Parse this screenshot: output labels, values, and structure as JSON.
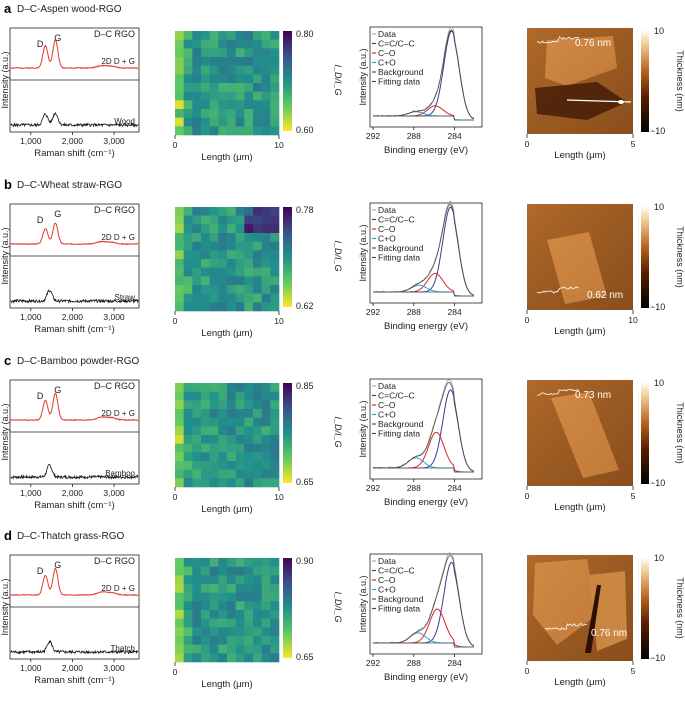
{
  "figure": {
    "panels": [
      {
        "letter": "a",
        "title": "D–C-Aspen wood-RGO",
        "sample": "Wood",
        "thickness_label": "0.76 nm",
        "afm_xmax": "5",
        "map": {
          "cbar_max": "0.80",
          "cbar_min": "0.60",
          "xmax": "10",
          "vmin": 0.6,
          "vmax": 0.8,
          "seed": 3,
          "hot_top_right": false
        }
      },
      {
        "letter": "b",
        "title": "D–C-Wheat straw-RGO",
        "sample": "Straw",
        "thickness_label": "0.62 nm",
        "afm_xmax": "10",
        "map": {
          "cbar_max": "0.78",
          "cbar_min": "0.62",
          "xmax": "10",
          "vmin": 0.62,
          "vmax": 0.78,
          "seed": 7,
          "hot_top_right": true
        }
      },
      {
        "letter": "c",
        "title": "D–C-Bamboo powder-RGO",
        "sample": "Bamboo",
        "thickness_label": "0.73 nm",
        "afm_xmax": "5",
        "map": {
          "cbar_max": "0.85",
          "cbar_min": "0.65",
          "xmax": "10",
          "vmin": 0.65,
          "vmax": 0.85,
          "seed": 11,
          "hot_top_right": false
        }
      },
      {
        "letter": "d",
        "title": "D–C-Thatch grass-RGO",
        "sample": "Thatch",
        "thickness_label": "0.76 nm",
        "afm_xmax": "5",
        "map": {
          "cbar_max": "0.90",
          "cbar_min": "0.65",
          "xmax": "",
          "vmin": 0.65,
          "vmax": 0.9,
          "seed": 19,
          "hot_top_right": false
        }
      }
    ],
    "raman": {
      "ylabel": "Intensity (a.u.)",
      "xlabel": "Raman shift (cm⁻¹)",
      "ticks": [
        "1,000",
        "2,000",
        "3,000"
      ],
      "rgo_label": "D–C RGO",
      "d_label": "D",
      "g_label": "G",
      "band2d_label": "2D D + G"
    },
    "map_common": {
      "xlabel": "Length (μm)",
      "xmin": "0",
      "ylabel": "I_D/I_G"
    },
    "xps": {
      "ylabel": "Intensity (a.u.)",
      "xlabel": "Binding energy (eV)",
      "ticks": [
        "292",
        "288",
        "284"
      ],
      "legend": [
        "Data",
        "C=C/C–C",
        "C–O",
        "C+O",
        "Background",
        "Fitting data"
      ]
    },
    "afm": {
      "xlabel": "Length (μm)",
      "xmin": "0",
      "cbar_label": "Thickness (nm)",
      "cbar_max": "10",
      "cbar_min": "−10"
    },
    "colors": {
      "raman_rgo": "#e23a2e",
      "raman_wood": "#111111",
      "xps_cc": "#3a3a8c",
      "xps_co": "#d62728",
      "xps_cpo": "#1fa7c9",
      "xps_bg": "#555555"
    }
  },
  "chart_data": [
    {
      "type": "line",
      "panel": "a-raman",
      "title": "D–C-Aspen wood-RGO",
      "xlabel": "Raman shift (cm⁻¹)",
      "ylabel": "Intensity (a.u.)",
      "xlim": [
        500,
        3600
      ],
      "series": [
        {
          "name": "D–C RGO",
          "peaks": [
            [
              1350,
              0.8
            ],
            [
              1590,
              1.0
            ],
            [
              2700,
              0.08
            ],
            [
              2940,
              0.06
            ]
          ]
        },
        {
          "name": "Wood",
          "peaks": [
            [
              1350,
              0.45
            ],
            [
              1590,
              0.5
            ]
          ]
        }
      ]
    },
    {
      "type": "heatmap",
      "panel": "a-map",
      "ylabel": "I_D/I_G",
      "xlabel": "Length (μm)",
      "xlim": [
        0,
        10
      ],
      "zlim": [
        0.6,
        0.8
      ]
    },
    {
      "type": "line",
      "panel": "a-xps",
      "xlabel": "Binding energy (eV)",
      "xlim": [
        292,
        282
      ],
      "components": [
        {
          "name": "C=C/C–C",
          "center": 284.3,
          "height": 1.0
        },
        {
          "name": "C–O",
          "center": 285.9,
          "height": 0.12
        },
        {
          "name": "C+O",
          "center": 287.8,
          "height": 0.05
        }
      ]
    },
    {
      "type": "heatmap",
      "panel": "a-afm",
      "xlabel": "Length (μm)",
      "xlim": [
        0,
        5
      ],
      "zlim": [
        -10,
        10
      ],
      "annotation": "0.76 nm"
    },
    {
      "type": "line",
      "panel": "b-raman",
      "title": "D–C-Wheat straw-RGO",
      "xlim": [
        500,
        3600
      ],
      "series": [
        {
          "name": "D–C RGO",
          "peaks": [
            [
              1350,
              0.55
            ],
            [
              1590,
              0.75
            ],
            [
              2700,
              0.08
            ],
            [
              2940,
              0.06
            ]
          ]
        },
        {
          "name": "Straw",
          "peaks": [
            [
              1450,
              0.45
            ]
          ]
        }
      ]
    },
    {
      "type": "heatmap",
      "panel": "b-map",
      "ylabel": "I_D/I_G",
      "xlim": [
        0,
        10
      ],
      "zlim": [
        0.62,
        0.78
      ]
    },
    {
      "type": "line",
      "panel": "b-xps",
      "xlim": [
        292,
        282
      ],
      "components": [
        {
          "name": "C=C/C–C",
          "center": 284.4,
          "height": 1.0
        },
        {
          "name": "C–O",
          "center": 285.9,
          "height": 0.22
        },
        {
          "name": "C+O",
          "center": 287.5,
          "height": 0.08
        }
      ]
    },
    {
      "type": "heatmap",
      "panel": "b-afm",
      "xlim": [
        0,
        10
      ],
      "zlim": [
        -10,
        10
      ],
      "annotation": "0.62 nm"
    },
    {
      "type": "line",
      "panel": "c-raman",
      "title": "D–C-Bamboo powder-RGO",
      "xlim": [
        500,
        3600
      ],
      "series": [
        {
          "name": "D–C RGO",
          "peaks": [
            [
              1350,
              0.7
            ],
            [
              1590,
              0.95
            ],
            [
              2700,
              0.1
            ],
            [
              2940,
              0.08
            ]
          ]
        },
        {
          "name": "Bamboo",
          "peaks": [
            [
              1450,
              0.5
            ]
          ]
        }
      ]
    },
    {
      "type": "heatmap",
      "panel": "c-map",
      "ylabel": "I_D/I_G",
      "xlim": [
        0,
        10
      ],
      "zlim": [
        0.65,
        0.85
      ]
    },
    {
      "type": "line",
      "panel": "c-xps",
      "xlim": [
        292,
        282
      ],
      "components": [
        {
          "name": "C=C/C–C",
          "center": 284.4,
          "height": 0.92
        },
        {
          "name": "C–O",
          "center": 285.8,
          "height": 0.42
        },
        {
          "name": "C+O",
          "center": 287.8,
          "height": 0.12
        }
      ]
    },
    {
      "type": "heatmap",
      "panel": "c-afm",
      "xlim": [
        0,
        5
      ],
      "zlim": [
        -10,
        10
      ],
      "annotation": "0.73 nm"
    },
    {
      "type": "line",
      "panel": "d-raman",
      "title": "D–C-Thatch grass-RGO",
      "xlim": [
        500,
        3600
      ],
      "series": [
        {
          "name": "D–C RGO",
          "peaks": [
            [
              1350,
              0.7
            ],
            [
              1590,
              0.95
            ],
            [
              2700,
              0.1
            ],
            [
              2940,
              0.08
            ]
          ]
        },
        {
          "name": "Thatch",
          "peaks": [
            [
              1450,
              0.45
            ]
          ]
        }
      ]
    },
    {
      "type": "heatmap",
      "panel": "d-map",
      "ylabel": "I_D/I_G",
      "xlim": [
        0,
        10
      ],
      "zlim": [
        0.65,
        0.9
      ]
    },
    {
      "type": "line",
      "panel": "d-xps",
      "xlim": [
        292,
        282
      ],
      "components": [
        {
          "name": "C=C/C–C",
          "center": 284.3,
          "height": 0.95
        },
        {
          "name": "C–O",
          "center": 285.7,
          "height": 0.4
        },
        {
          "name": "C+O",
          "center": 287.6,
          "height": 0.12
        }
      ]
    },
    {
      "type": "heatmap",
      "panel": "d-afm",
      "xlim": [
        0,
        5
      ],
      "zlim": [
        -10,
        10
      ],
      "annotation": "0.76 nm"
    }
  ]
}
